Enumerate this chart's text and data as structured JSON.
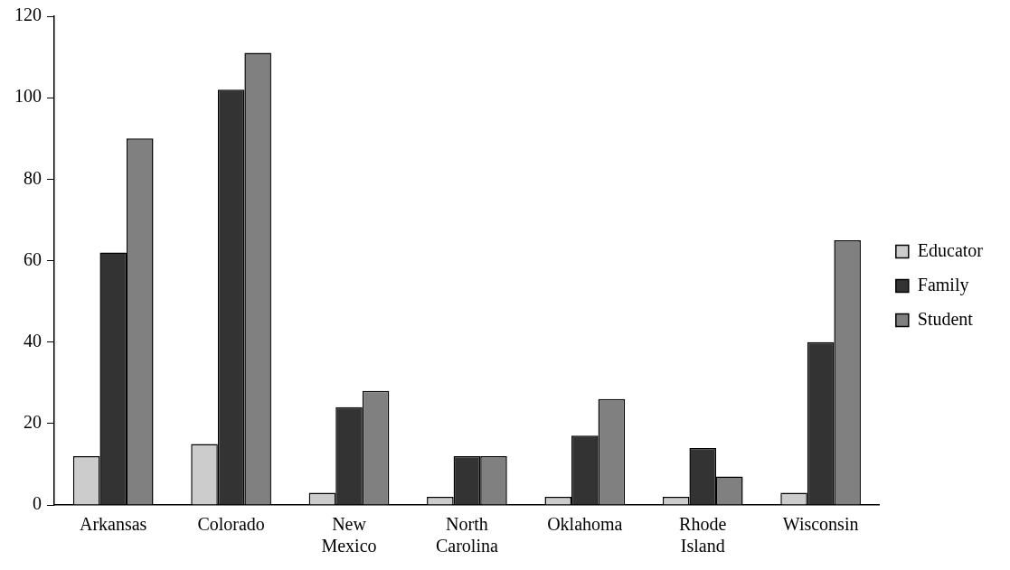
{
  "chart_data": {
    "type": "bar",
    "categories": [
      "Arkansas",
      "Colorado",
      "New Mexico",
      "North Carolina",
      "Oklahoma",
      "Rhode Island",
      "Wisconsin"
    ],
    "series": [
      {
        "name": "Educator",
        "color": "#cccccc",
        "values": [
          12,
          15,
          3,
          2,
          2,
          2,
          3
        ]
      },
      {
        "name": "Family",
        "color": "#333333",
        "values": [
          62,
          102,
          24,
          12,
          17,
          14,
          40
        ]
      },
      {
        "name": "Student",
        "color": "#808080",
        "values": [
          90,
          111,
          28,
          12,
          26,
          7,
          65
        ]
      }
    ],
    "ylim": [
      0,
      120
    ],
    "yticks": [
      0,
      20,
      40,
      60,
      80,
      100,
      120
    ],
    "grid": false,
    "legend": "right"
  }
}
